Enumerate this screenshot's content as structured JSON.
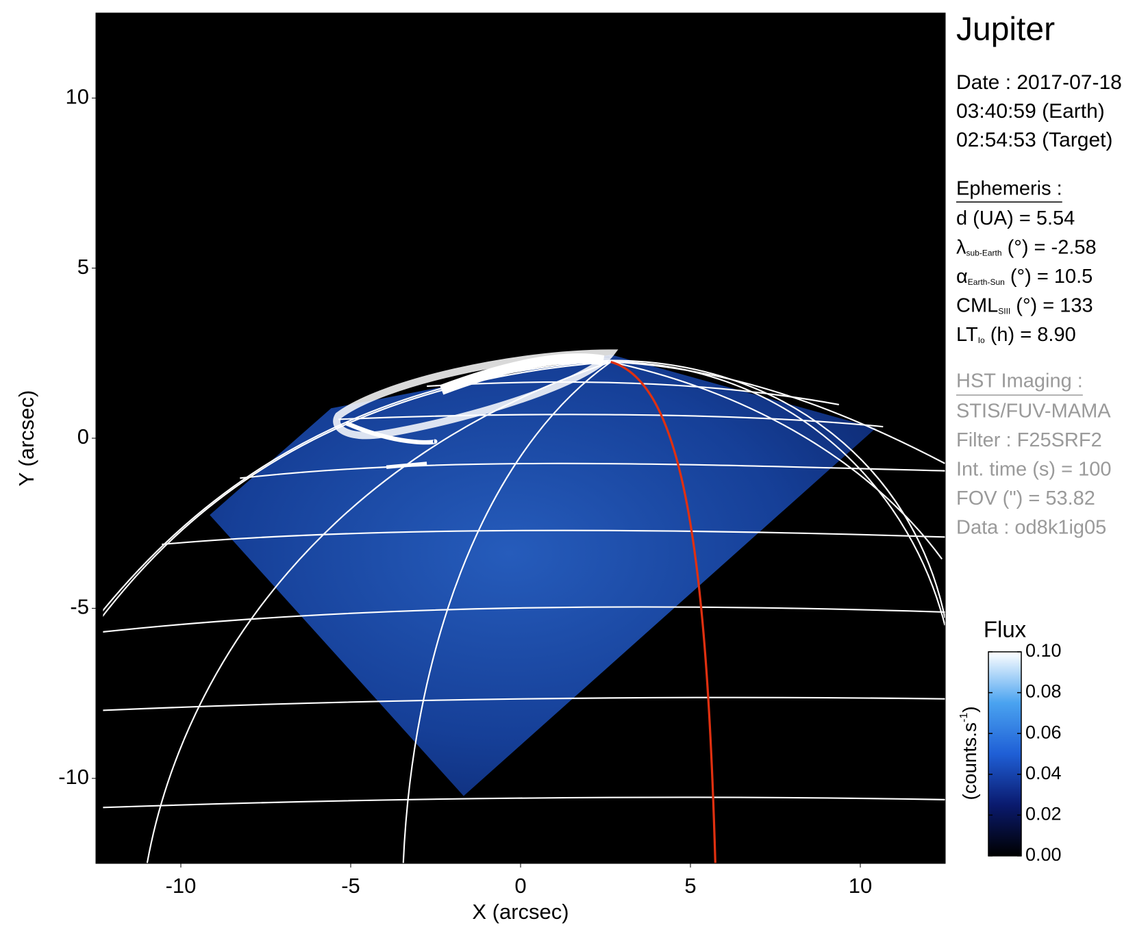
{
  "chart_data": {
    "type": "image",
    "title": "Jupiter",
    "xlabel": "X (arcsec)",
    "ylabel": "Y (arcsec)",
    "xlim": [
      -12.5,
      12.5
    ],
    "ylim": [
      -12.5,
      12.5
    ],
    "xticks": [
      -10,
      -5,
      0,
      5,
      10
    ],
    "yticks": [
      -10,
      -5,
      0,
      5,
      10
    ],
    "colorbar": {
      "title": "Flux",
      "label": {
        "text": "(counts.s",
        "sup": "-1",
        "end": ")"
      },
      "lim": [
        0,
        0.1
      ],
      "ticks": [
        {
          "value": 0,
          "label": "0.00"
        },
        {
          "value": 0.02,
          "label": "0.02"
        },
        {
          "value": 0.04,
          "label": "0.04"
        },
        {
          "value": 0.06,
          "label": "0.06"
        },
        {
          "value": 0.08,
          "label": "0.08"
        },
        {
          "value": 0.1,
          "label": "0.10"
        }
      ],
      "colormap": [
        "#000000",
        "#0a1a6e",
        "#1f5fd6",
        "#4aa3f0",
        "#ffffff"
      ]
    },
    "date": [
      "Date : 2017-07-18",
      "03:40:59 (Earth)",
      "02:54:53 (Target)"
    ],
    "ephemeris": {
      "heading": "Ephemeris :",
      "lines": [
        {
          "text": "d (UA)    = 5.54"
        },
        {
          "text": "λ",
          "sub": "sub-Earth",
          "rest": " (°) = -2.58"
        },
        {
          "text": "α",
          "sub": "Earth-Sun",
          "rest": " (°) = 10.5"
        },
        {
          "text": "CML",
          "sub": "SIII",
          "rest": " (°) = 133"
        },
        {
          "text": "LT",
          "sub": "Io",
          "rest": " (h) = 8.90"
        }
      ]
    },
    "imaging": {
      "heading": "HST Imaging :",
      "lines": [
        "STIS/FUV-MAMA",
        "Filter : F25SRF2",
        "Int. time (s) = 100",
        "FOV (\") = 53.82",
        "Data : od8k1ig05"
      ]
    }
  }
}
